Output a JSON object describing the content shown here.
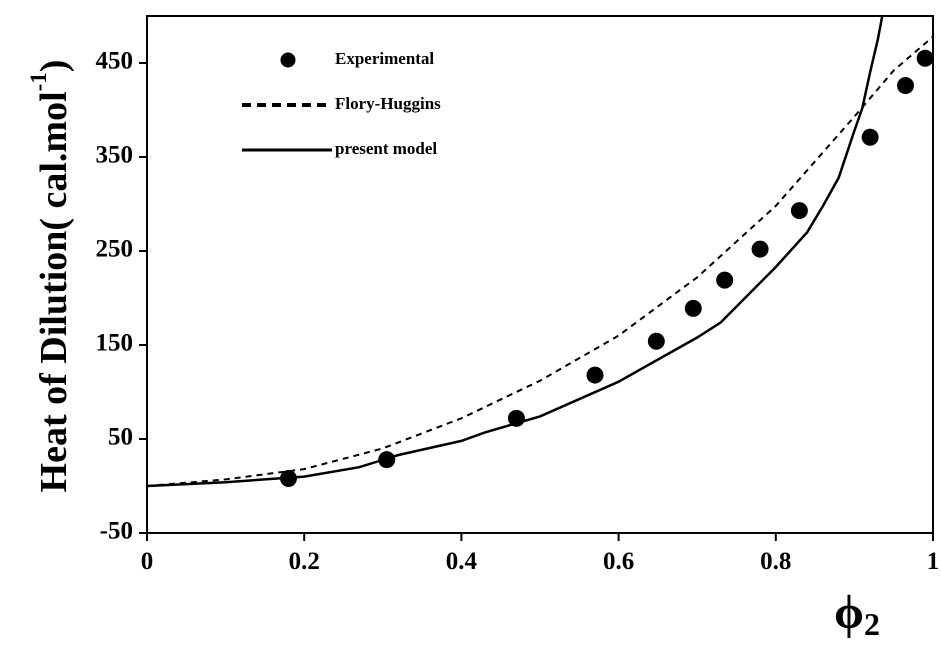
{
  "chart_data": {
    "type": "scatter",
    "ylabel": "Heat of Dilution( cal.mol",
    "ylabel_sup": "-1",
    "ylabel_close": ")",
    "xlabel_symbol": "ϕ",
    "xlabel_sub": "2",
    "xlim": [
      0,
      1
    ],
    "ylim": [
      -50,
      500
    ],
    "x_ticks": [
      0,
      0.2,
      0.4,
      0.6,
      0.8,
      1
    ],
    "x_tick_labels": [
      "0",
      "0.2",
      "0.4",
      "0.6",
      "0.8",
      "1"
    ],
    "y_ticks": [
      -50,
      50,
      150,
      250,
      350,
      450
    ],
    "y_tick_labels": [
      "-50",
      "50",
      "150",
      "250",
      "350",
      "450"
    ],
    "grid": false,
    "legend_position": "top-left",
    "series": [
      {
        "name": "Experimental",
        "style": "marker",
        "color": "#000000",
        "x": [
          0.18,
          0.305,
          0.47,
          0.57,
          0.648,
          0.695,
          0.735,
          0.78,
          0.83,
          0.92,
          0.965,
          0.99
        ],
        "y": [
          8,
          28,
          72,
          118,
          154,
          189,
          219,
          252,
          293,
          371,
          426,
          455
        ]
      },
      {
        "name": "Flory-Huggins",
        "style": "dashed",
        "color": "#000000",
        "x": [
          0,
          0.1,
          0.2,
          0.3,
          0.4,
          0.5,
          0.6,
          0.7,
          0.8,
          0.9,
          0.95,
          1.0
        ],
        "y": [
          0,
          7,
          18,
          40,
          72,
          112,
          160,
          222,
          298,
          393,
          442,
          478
        ]
      },
      {
        "name": "present model",
        "style": "solid",
        "color": "#000000",
        "x": [
          0,
          0.1,
          0.2,
          0.27,
          0.32,
          0.4,
          0.43,
          0.5,
          0.6,
          0.7,
          0.73,
          0.8,
          0.84,
          0.86,
          0.88,
          0.9,
          0.91,
          0.92,
          0.93,
          0.94
        ],
        "y": [
          0,
          4,
          10,
          20,
          33,
          48,
          57,
          74,
          111,
          158,
          174,
          233,
          270,
          298,
          328,
          378,
          402,
          440,
          476,
          520
        ]
      }
    ]
  }
}
